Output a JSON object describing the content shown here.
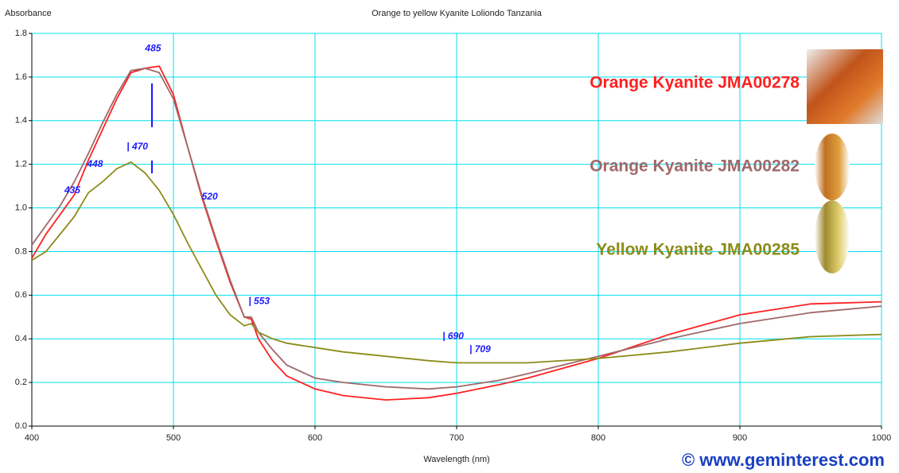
{
  "chart_data": {
    "type": "line",
    "title": "Orange to yellow Kyanite Loliondo Tanzania",
    "y_label": "Absorbance",
    "x_label": "Wavelength (nm)",
    "credit": "© www.geminterest.com",
    "x": [
      400,
      410,
      420,
      430,
      440,
      450,
      460,
      470,
      480,
      490,
      500,
      510,
      520,
      530,
      540,
      550,
      555,
      560,
      570,
      580,
      600,
      620,
      650,
      680,
      700,
      730,
      750,
      800,
      850,
      900,
      950,
      1000
    ],
    "series": [
      {
        "name": "Orange Kyanite JMA00278",
        "color": "#ff2020",
        "values": [
          0.77,
          0.88,
          0.97,
          1.06,
          1.22,
          1.36,
          1.5,
          1.62,
          1.64,
          1.65,
          1.52,
          1.28,
          1.05,
          0.85,
          0.66,
          0.5,
          0.49,
          0.4,
          0.3,
          0.23,
          0.17,
          0.14,
          0.12,
          0.13,
          0.15,
          0.19,
          0.22,
          0.31,
          0.42,
          0.51,
          0.56,
          0.57
        ]
      },
      {
        "name": "Orange Kyanite JMA00282",
        "color": "#a06868",
        "values": [
          0.83,
          0.92,
          1.01,
          1.12,
          1.25,
          1.39,
          1.52,
          1.63,
          1.64,
          1.62,
          1.5,
          1.28,
          1.06,
          0.86,
          0.67,
          0.5,
          0.5,
          0.43,
          0.35,
          0.28,
          0.22,
          0.2,
          0.18,
          0.17,
          0.18,
          0.21,
          0.24,
          0.32,
          0.4,
          0.47,
          0.52,
          0.55
        ]
      },
      {
        "name": "Yellow Kyanite JMA00285",
        "color": "#8b8b1a",
        "values": [
          0.76,
          0.8,
          0.88,
          0.96,
          1.07,
          1.12,
          1.18,
          1.21,
          1.16,
          1.08,
          0.97,
          0.84,
          0.72,
          0.6,
          0.51,
          0.46,
          0.47,
          0.43,
          0.4,
          0.38,
          0.36,
          0.34,
          0.32,
          0.3,
          0.29,
          0.29,
          0.29,
          0.31,
          0.34,
          0.38,
          0.41,
          0.42
        ]
      }
    ],
    "annotations": [
      {
        "label": "485",
        "x": 480,
        "y": 1.73
      },
      {
        "label": "| 470",
        "x": 467,
        "y": 1.28
      },
      {
        "label": "448",
        "x": 439,
        "y": 1.2
      },
      {
        "label": "435",
        "x": 423,
        "y": 1.08
      },
      {
        "label": "520",
        "x": 520,
        "y": 1.05
      },
      {
        "label": "| 553",
        "x": 553,
        "y": 0.57
      },
      {
        "label": "| 690",
        "x": 690,
        "y": 0.41
      },
      {
        "label": "| 709",
        "x": 709,
        "y": 0.35
      }
    ],
    "xlim": [
      400,
      1000
    ],
    "xticks": [
      400,
      500,
      600,
      700,
      800,
      900,
      1000
    ],
    "ylim": [
      0,
      1.8
    ],
    "yticks": [
      {
        "value": 0,
        "label": "0.0"
      },
      0.2,
      0.4,
      0.6,
      0.8,
      {
        "value": 1,
        "label": "1.0"
      },
      1.2,
      1.4,
      1.6,
      1.8
    ],
    "grid": true,
    "grid_color": "#00e0f0"
  }
}
